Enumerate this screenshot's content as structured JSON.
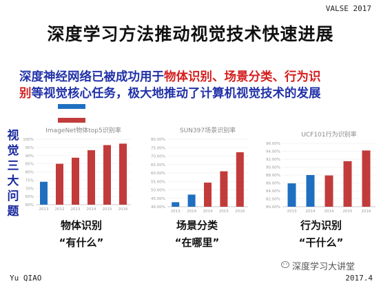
{
  "header": {
    "venue": "VALSE 2017"
  },
  "title": "深度学习方法推动视觉技术快速进展",
  "subtitle": {
    "part1": "深度神经网络已被成功用于",
    "part2": "物体识别、场景分类、行为识",
    "part3": "别",
    "part4": "等视觉核心任务，极大地推动了计算机视觉技术的发展"
  },
  "side_label": "视觉三大问题",
  "legend": {
    "blue_label": "",
    "red_label": ""
  },
  "watermark": "深度学习大讲堂",
  "footer": {
    "author": "Yu QIAO",
    "date": "2017.4"
  },
  "colors": {
    "blue": "#1f6fc0",
    "red": "#c23b3b",
    "title_blue": "#2131a8",
    "subtitle_red": "#d42020"
  },
  "chart_data": [
    {
      "type": "bar",
      "title": "ImageNet物体top5识别率",
      "categories": [
        "2013",
        "2012",
        "2013",
        "2014",
        "2015",
        "2016"
      ],
      "values": [
        74,
        85,
        88.7,
        93.3,
        96.4,
        97.3
      ],
      "bar_colors": [
        "blue",
        "red",
        "red",
        "red",
        "red",
        "red"
      ],
      "yticks": [
        "100%",
        "95%",
        "90%",
        "85%",
        "80%",
        "75%",
        "70%",
        "65%",
        "60%"
      ],
      "ylim": [
        60,
        100
      ],
      "caption": "物体识别",
      "caption_quote": "“有什么”"
    },
    {
      "type": "bar",
      "title": "SUN397场景识别率",
      "categories": [
        "2013",
        "2014",
        "2014",
        "2015",
        "2016"
      ],
      "values": [
        42.7,
        47.2,
        54.3,
        61.0,
        72.3
      ],
      "bar_colors": [
        "blue",
        "blue",
        "red",
        "red",
        "red"
      ],
      "yticks": [
        "80.00%",
        "75.00%",
        "70.00%",
        "65.00%",
        "60.00%",
        "55.00%",
        "50.00%",
        "45.00%",
        "40.00%"
      ],
      "ylim": [
        40,
        80
      ],
      "caption": "场景分类",
      "caption_quote": "“在哪里”"
    },
    {
      "type": "bar",
      "title": "UCF101行为识别率",
      "categories": [
        "2013",
        "2014",
        "2014",
        "2015",
        "2016"
      ],
      "values": [
        85.9,
        88.0,
        87.9,
        91.5,
        94.2
      ],
      "bar_colors": [
        "blue",
        "blue",
        "red",
        "red",
        "red"
      ],
      "yticks": [
        "96.00%",
        "94.00%",
        "92.00%",
        "90.00%",
        "88.00%",
        "86.00%",
        "84.00%",
        "82.00%",
        "80.00%"
      ],
      "ylim": [
        80,
        96
      ],
      "caption": "行为识别",
      "caption_quote": "“干什么”"
    }
  ]
}
